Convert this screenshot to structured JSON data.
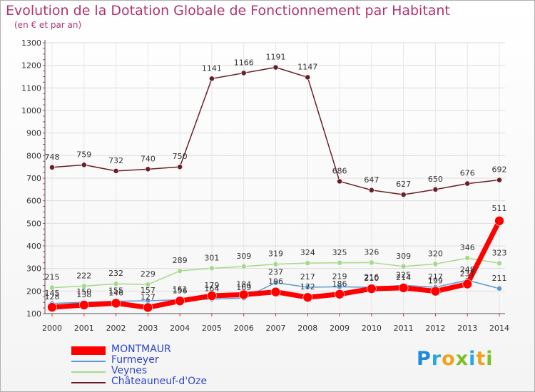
{
  "title": "Evolution de la Dotation Globale de Fonctionnement par Habitant",
  "subtitle": "(en € et par an)",
  "logo": {
    "text": "Proxiti",
    "colors": [
      "#1e8ad8",
      "#27a7e6",
      "#f2a11d",
      "#7cbf2a",
      "#27a7e6",
      "#f2a11d",
      "#7cbf2a"
    ]
  },
  "chart_data": {
    "type": "line",
    "x": [
      "2000",
      "2001",
      "2002",
      "2003",
      "2004",
      "2005",
      "2006",
      "2007",
      "2008",
      "2009",
      "2010",
      "2011",
      "2012",
      "2013",
      "2014"
    ],
    "ylim": [
      100,
      1300
    ],
    "yticks": [
      100,
      200,
      300,
      400,
      500,
      600,
      700,
      800,
      900,
      1000,
      1100,
      1200,
      1300
    ],
    "grid": true,
    "legend_position": "bottom-left",
    "series": [
      {
        "name": "Châteauneuf-d'Oze",
        "color": "#6b1e27",
        "values": [
          748,
          759,
          732,
          740,
          750,
          1141,
          1166,
          1191,
          1147,
          686,
          647,
          627,
          650,
          676,
          692
        ]
      },
      {
        "name": "Veynes",
        "color": "#a6d98a",
        "values": [
          215,
          222,
          232,
          229,
          289,
          301,
          309,
          319,
          324,
          325,
          326,
          309,
          320,
          346,
          323
        ]
      },
      {
        "name": "Furmeyer",
        "color": "#5b9bd5",
        "values": [
          145,
          150,
          155,
          157,
          161,
          164,
          169,
          237,
          217,
          219,
          216,
          225,
          217,
          248,
          211
        ]
      },
      {
        "name": "MONTMAUR",
        "color": "#ff0000",
        "values": [
          128,
          138,
          146,
          127,
          156,
          179,
          184,
          196,
          172,
          186,
          210,
          214,
          199,
          231,
          511
        ]
      }
    ]
  }
}
